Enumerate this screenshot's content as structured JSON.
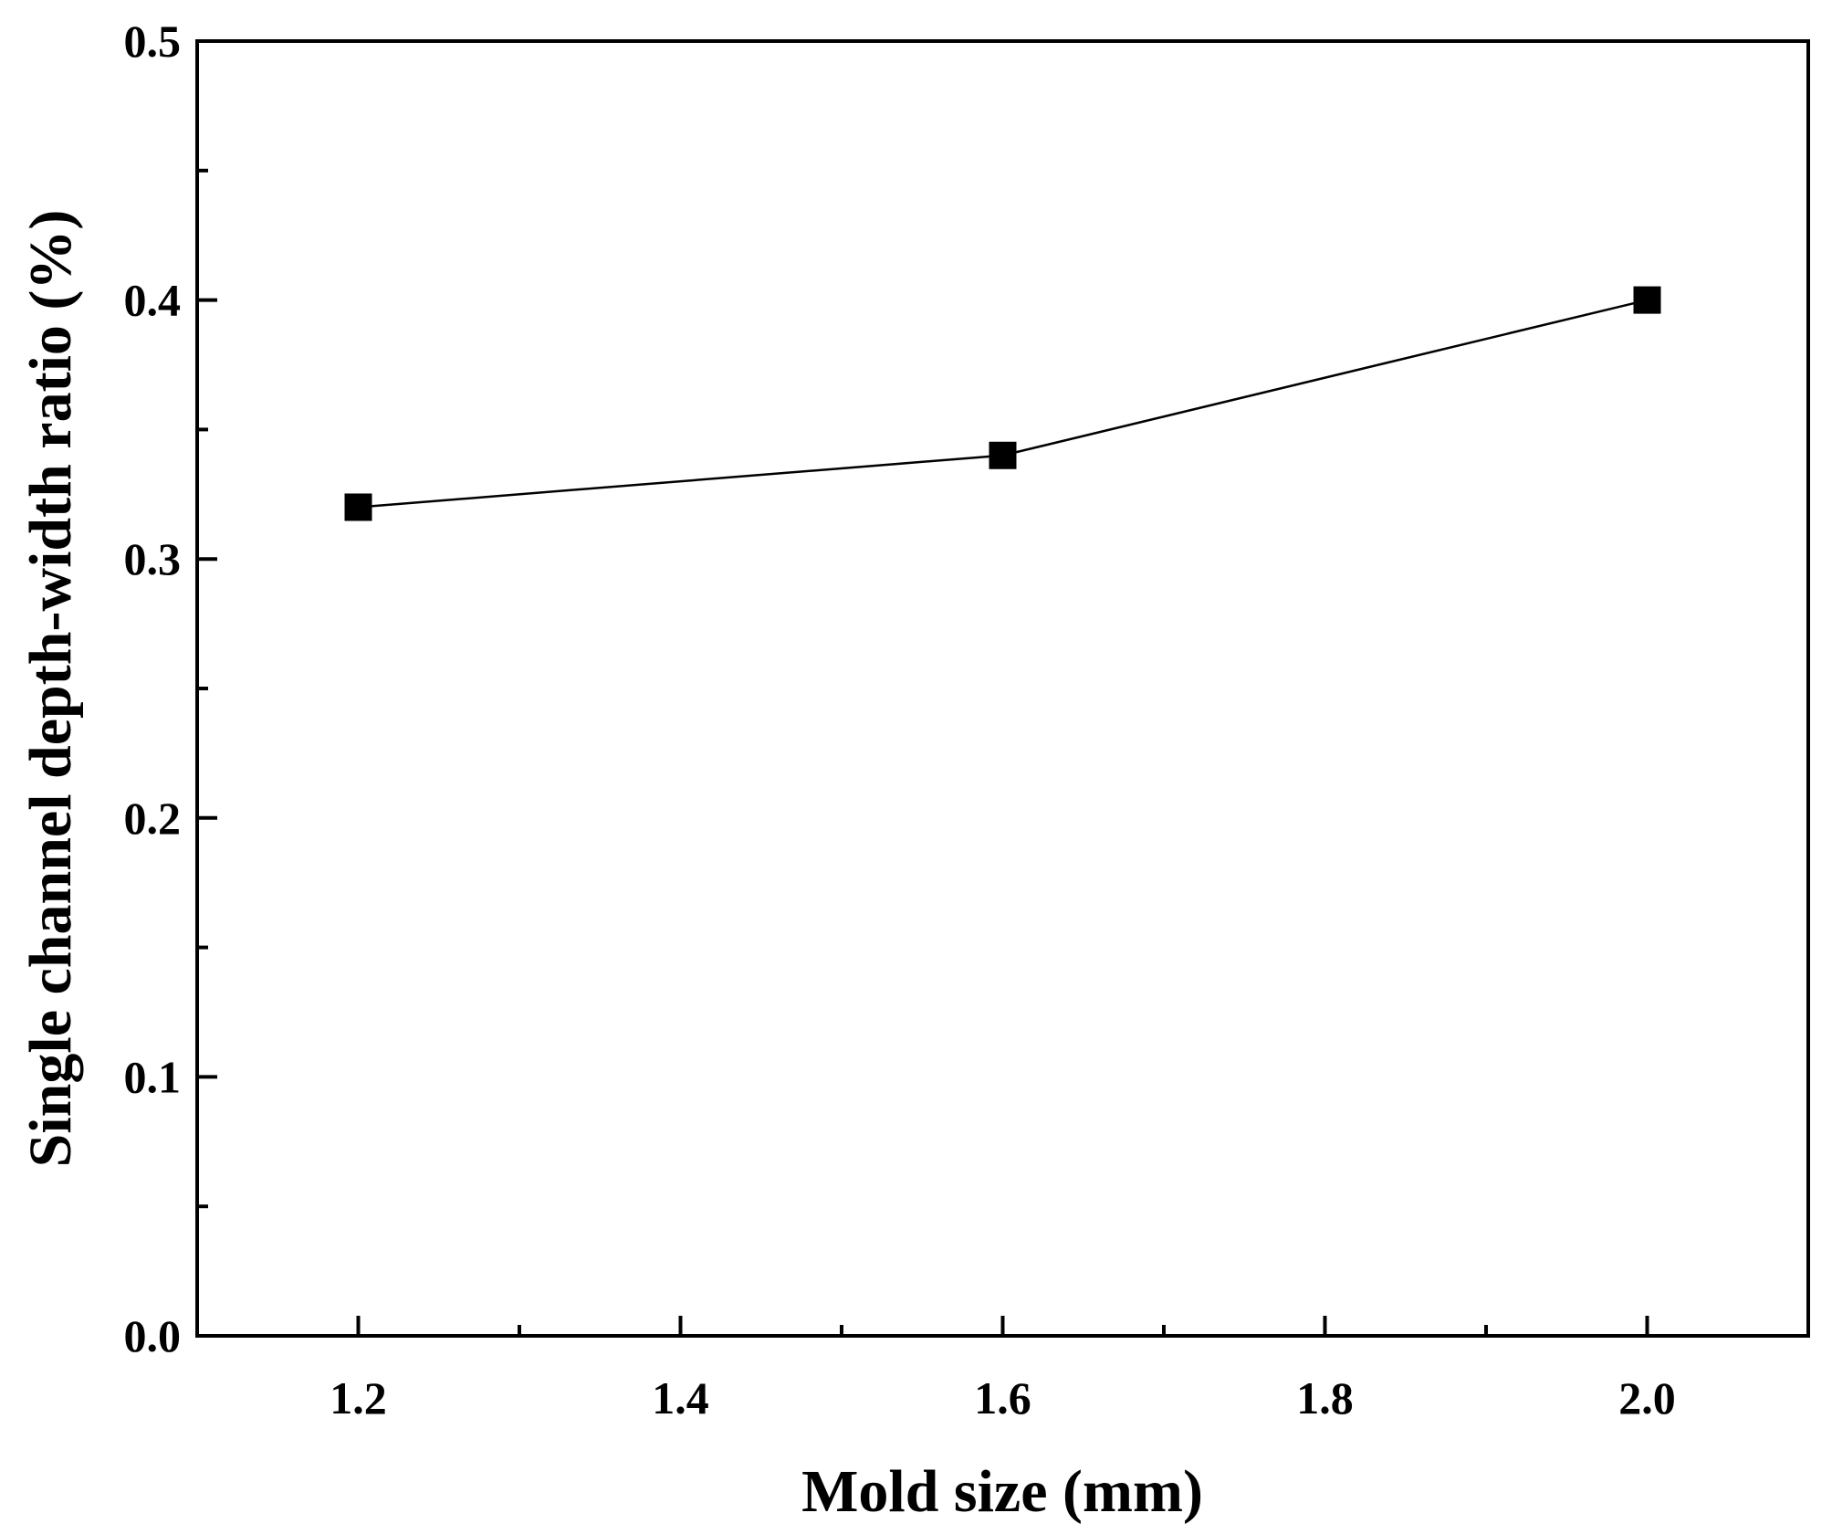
{
  "chart_data": {
    "type": "line",
    "title": "",
    "xlabel": "Mold size (mm)",
    "ylabel": "Single channel depth-width ratio (%)",
    "xlim": [
      1.1,
      2.1
    ],
    "ylim": [
      0.0,
      0.5
    ],
    "x_ticks": [
      "1.2",
      "1.4",
      "1.6",
      "1.8",
      "2.0"
    ],
    "x_tick_values": [
      1.2,
      1.4,
      1.6,
      1.8,
      2.0
    ],
    "x_minor_ticks": [
      1.3,
      1.5,
      1.7,
      1.9
    ],
    "y_ticks": [
      "0.0",
      "0.1",
      "0.2",
      "0.3",
      "0.4",
      "0.5"
    ],
    "y_tick_values": [
      0.0,
      0.1,
      0.2,
      0.3,
      0.4,
      0.5
    ],
    "y_minor_ticks": [
      0.05,
      0.15,
      0.25,
      0.35,
      0.45
    ],
    "grid": false,
    "legend": "none",
    "marker": "square",
    "color": "#000000",
    "series": [
      {
        "x": [
          1.2,
          1.6,
          2.0
        ],
        "values": [
          0.32,
          0.34,
          0.4
        ]
      }
    ]
  }
}
